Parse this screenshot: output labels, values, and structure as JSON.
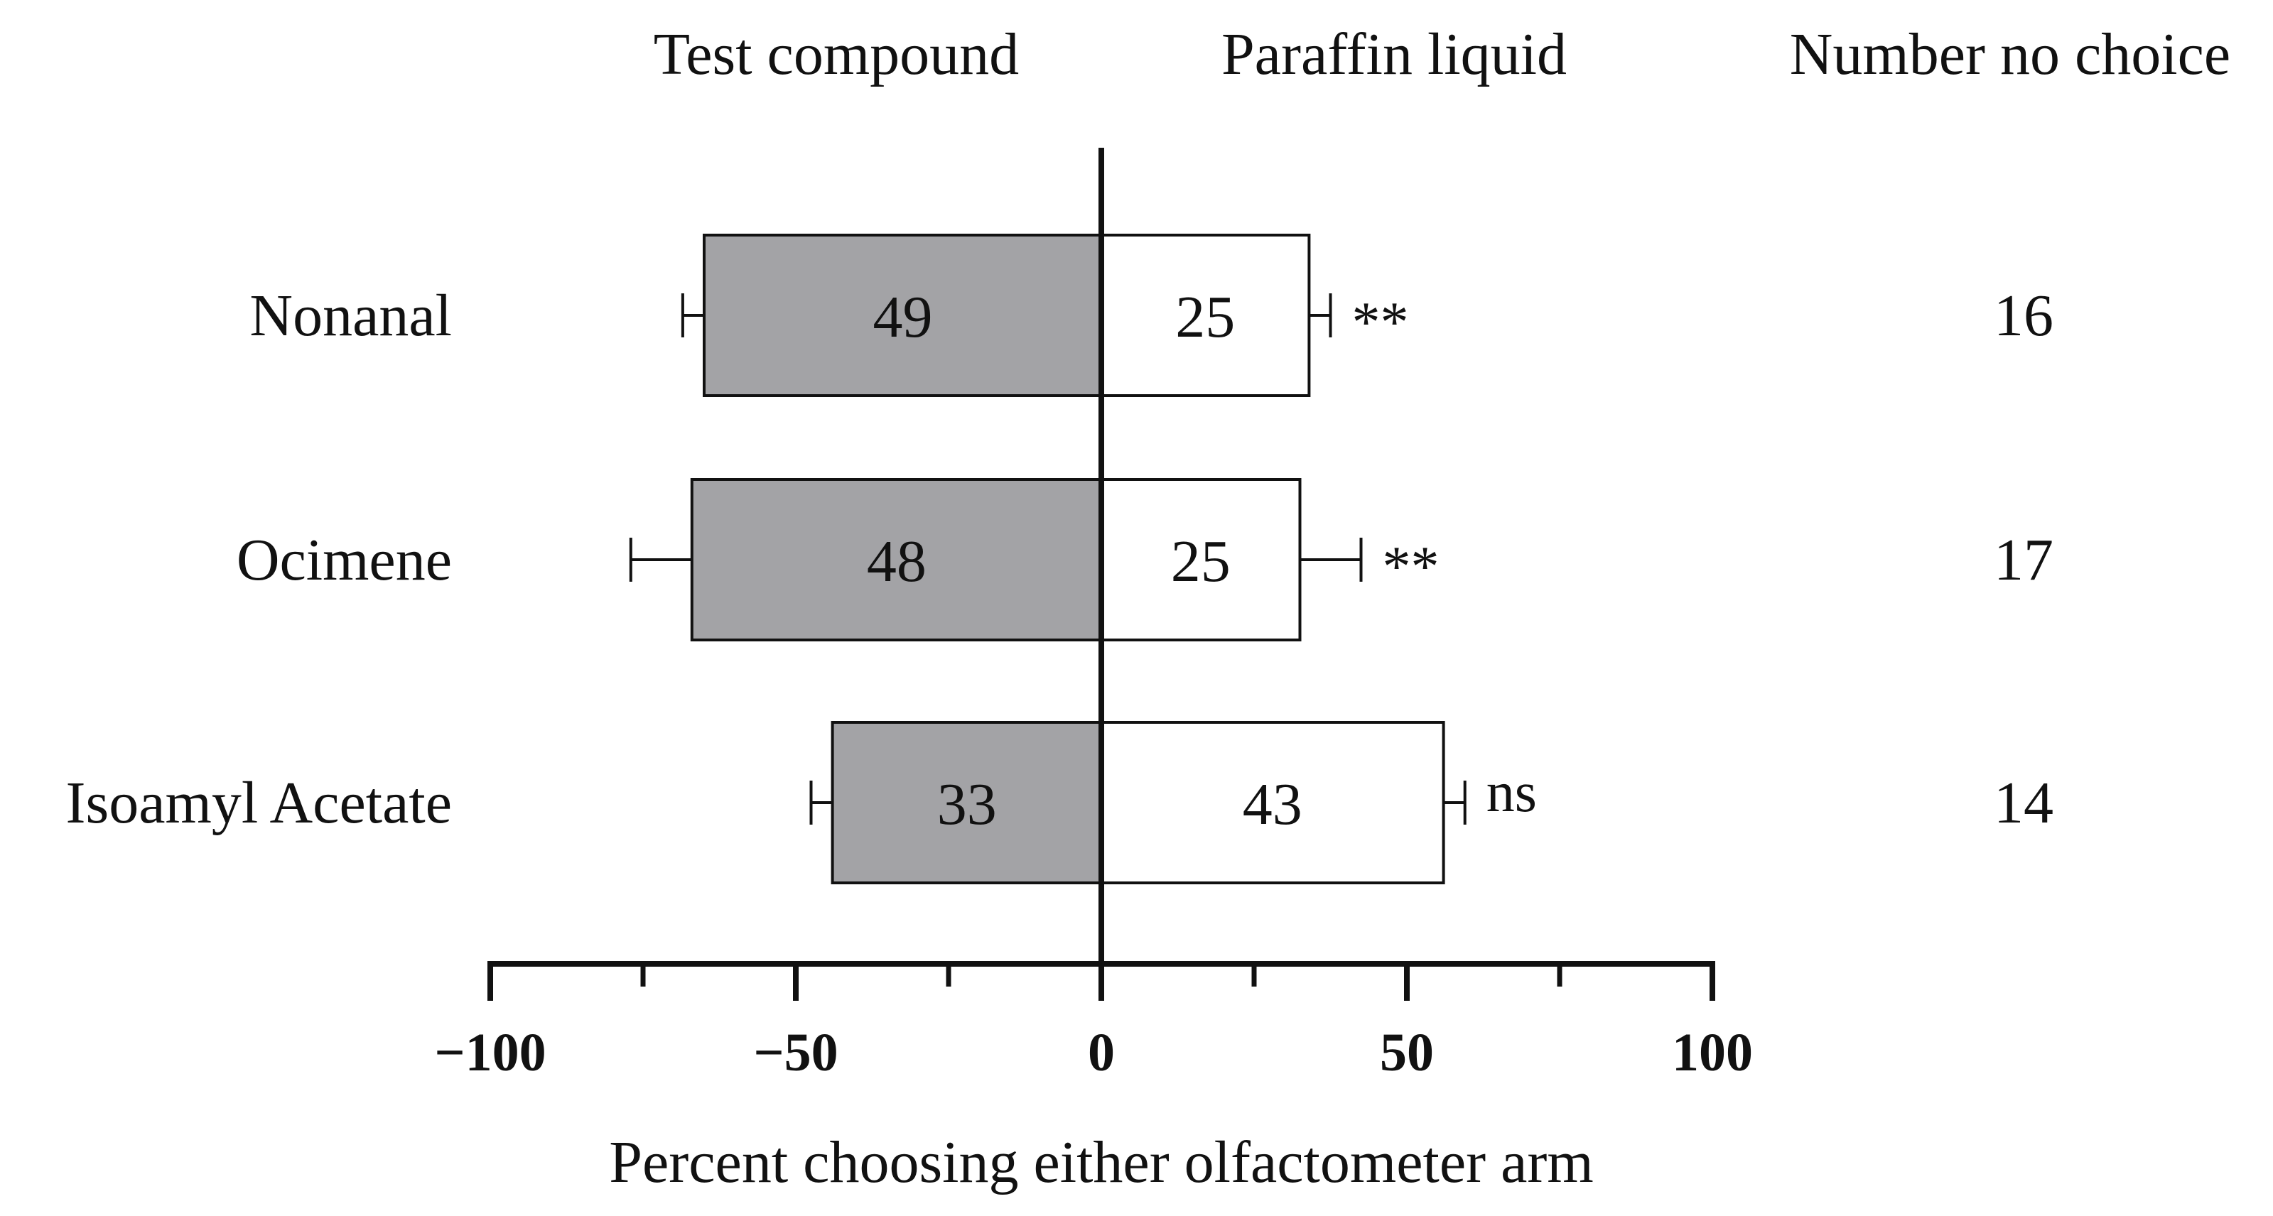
{
  "chart_data": {
    "type": "bar",
    "orientation": "horizontal-diverging",
    "headers": {
      "left": "Test compound",
      "right": "Paraffin liquid",
      "count": "Number no choice"
    },
    "categories": [
      "Nonanal",
      "Ocimene",
      "Isoamyl Acetate"
    ],
    "series": [
      {
        "name": "Test compound",
        "values": [
          -65,
          -67,
          -44
        ],
        "errors": [
          3.5,
          10,
          3.5
        ],
        "labels": [
          "49",
          "48",
          "33"
        ],
        "color": "#a3a3a6"
      },
      {
        "name": "Paraffin liquid",
        "values": [
          34,
          32.5,
          56
        ],
        "errors": [
          3.5,
          10,
          3.5
        ],
        "labels": [
          "25",
          "25",
          "43"
        ],
        "color": "#ffffff"
      }
    ],
    "significance": [
      "**",
      "**",
      "ns"
    ],
    "no_choice_counts": [
      "16",
      "17",
      "14"
    ],
    "xlabel": "Percent choosing either olfactometer arm",
    "xlim": [
      -100,
      100
    ],
    "major_ticks": [
      -100,
      -50,
      0,
      50,
      100
    ],
    "tick_labels": [
      "−100",
      "−50",
      "0",
      "50",
      "100"
    ],
    "minor_ticks": [
      -75,
      -25,
      25,
      75
    ],
    "grid": false
  }
}
